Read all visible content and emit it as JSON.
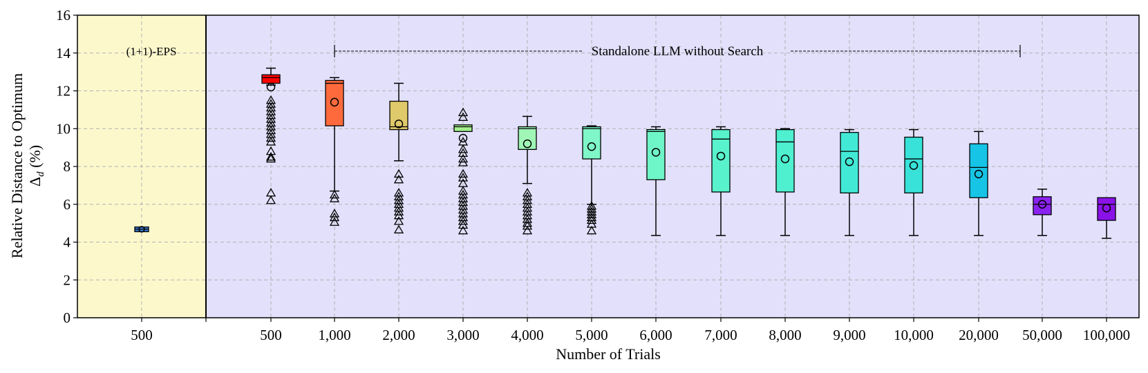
{
  "chart_data": {
    "type": "box",
    "xlabel": "Number of Trials",
    "ylabel_line1": "Relative Distance to Optimum",
    "ylabel_line2_symbol": "Δ",
    "ylabel_line2_sub": "d",
    "ylabel_line2_unit": " (%)",
    "ylim": [
      0,
      16
    ],
    "yticks": [
      0,
      2,
      4,
      6,
      8,
      10,
      12,
      14,
      16
    ],
    "grid": true,
    "regions": [
      {
        "label": "(1+1)-EPS",
        "color": "#fcf8cc"
      },
      {
        "label": "Standalone LLM without Search",
        "color": "#e2e0fb"
      }
    ],
    "categories": [
      "500",
      "500",
      "1,000",
      "2,000",
      "3,000",
      "4,000",
      "5,000",
      "6,000",
      "7,000",
      "8,000",
      "9,000",
      "10,000",
      "20,000",
      "50,000",
      "100,000"
    ],
    "boxes": [
      {
        "label": "500",
        "group": "(1+1)-EPS",
        "color": "#3a7bd5",
        "whisker_low": 4.55,
        "q1": 4.55,
        "median": 4.68,
        "q3": 4.8,
        "whisker_high": 4.8,
        "mean": 4.68,
        "outliers": []
      },
      {
        "label": "500",
        "group": "Standalone LLM without Search",
        "color": "#ff0000",
        "whisker_low": 12.3,
        "q1": 12.4,
        "median": 12.7,
        "q3": 12.85,
        "whisker_high": 13.2,
        "mean": 12.2,
        "outliers": [
          11.5,
          11.3,
          11.1,
          10.9,
          10.7,
          10.5,
          10.3,
          10.1,
          9.9,
          9.7,
          9.5,
          9.3,
          8.8,
          8.5,
          8.4,
          6.6,
          6.2
        ]
      },
      {
        "label": "1,000",
        "group": "Standalone LLM without Search",
        "color": "#ff6a3c",
        "whisker_low": 6.7,
        "q1": 10.15,
        "median": 12.4,
        "q3": 12.55,
        "whisker_high": 12.7,
        "mean": 11.4,
        "outliers": [
          6.5,
          6.3,
          5.5,
          5.3,
          5.05
        ]
      },
      {
        "label": "2,000",
        "group": "Standalone LLM without Search",
        "color": "#e0c96a",
        "whisker_low": 8.3,
        "q1": 9.95,
        "median": 10.1,
        "q3": 11.45,
        "whisker_high": 12.4,
        "mean": 10.25,
        "outliers": [
          7.6,
          7.3,
          6.6,
          6.4,
          6.2,
          6.0,
          5.8,
          5.6,
          5.4,
          5.1,
          4.65
        ]
      },
      {
        "label": "3,000",
        "group": "Standalone LLM without Search",
        "color": "#a5f08e",
        "whisker_low": 9.85,
        "q1": 9.85,
        "median": 10.1,
        "q3": 10.2,
        "whisker_high": 10.2,
        "mean": 9.5,
        "outliers": [
          10.85,
          10.6,
          9.3,
          8.9,
          8.7,
          8.4,
          8.2,
          7.6,
          7.4,
          7.1,
          6.7,
          6.5,
          6.3,
          6.1,
          5.9,
          5.7,
          5.5,
          5.3,
          5.1,
          4.9,
          4.6
        ]
      },
      {
        "label": "4,000",
        "group": "Standalone LLM without Search",
        "color": "#a0f6b6",
        "whisker_low": 7.1,
        "q1": 8.9,
        "median": 10.0,
        "q3": 10.1,
        "whisker_high": 10.65,
        "mean": 9.2,
        "outliers": [
          6.6,
          6.4,
          6.2,
          6.0,
          5.8,
          5.6,
          5.4,
          5.2,
          5.0,
          4.85,
          4.6
        ]
      },
      {
        "label": "5,000",
        "group": "Standalone LLM without Search",
        "color": "#7ff7c8",
        "whisker_low": 6.0,
        "q1": 8.4,
        "median": 10.0,
        "q3": 10.1,
        "whisker_high": 10.15,
        "mean": 9.05,
        "outliers": [
          5.9,
          5.75,
          5.6,
          5.45,
          5.3,
          5.15,
          4.95,
          4.6
        ]
      },
      {
        "label": "6,000",
        "group": "Standalone LLM without Search",
        "color": "#6ff6c8",
        "whisker_low": 4.35,
        "q1": 7.3,
        "median": 9.85,
        "q3": 9.95,
        "whisker_high": 10.1,
        "mean": 8.75,
        "outliers": []
      },
      {
        "label": "7,000",
        "group": "Standalone LLM without Search",
        "color": "#58f2cc",
        "whisker_low": 4.35,
        "q1": 6.65,
        "median": 9.45,
        "q3": 9.95,
        "whisker_high": 10.1,
        "mean": 8.55,
        "outliers": []
      },
      {
        "label": "8,000",
        "group": "Standalone LLM without Search",
        "color": "#4ef0d0",
        "whisker_low": 4.35,
        "q1": 6.65,
        "median": 9.3,
        "q3": 9.95,
        "whisker_high": 10.0,
        "mean": 8.4,
        "outliers": []
      },
      {
        "label": "9,000",
        "group": "Standalone LLM without Search",
        "color": "#42ead6",
        "whisker_low": 4.35,
        "q1": 6.6,
        "median": 8.8,
        "q3": 9.8,
        "whisker_high": 9.95,
        "mean": 8.25,
        "outliers": []
      },
      {
        "label": "10,000",
        "group": "Standalone LLM without Search",
        "color": "#38e2d8",
        "whisker_low": 4.35,
        "q1": 6.6,
        "median": 8.4,
        "q3": 9.55,
        "whisker_high": 9.95,
        "mean": 8.05,
        "outliers": []
      },
      {
        "label": "20,000",
        "group": "Standalone LLM without Search",
        "color": "#16c4e6",
        "whisker_low": 4.35,
        "q1": 6.35,
        "median": 7.95,
        "q3": 9.2,
        "whisker_high": 9.85,
        "mean": 7.6,
        "outliers": []
      },
      {
        "label": "50,000",
        "group": "Standalone LLM without Search",
        "color": "#8a22f0",
        "whisker_low": 4.35,
        "q1": 5.45,
        "median": 6.0,
        "q3": 6.4,
        "whisker_high": 6.8,
        "mean": 6.0,
        "outliers": []
      },
      {
        "label": "100,000",
        "group": "Standalone LLM without Search",
        "color": "#8a12e8",
        "whisker_low": 4.2,
        "q1": 5.15,
        "median": 6.0,
        "q3": 6.35,
        "whisker_high": 6.35,
        "mean": 5.8,
        "outliers": []
      }
    ]
  }
}
